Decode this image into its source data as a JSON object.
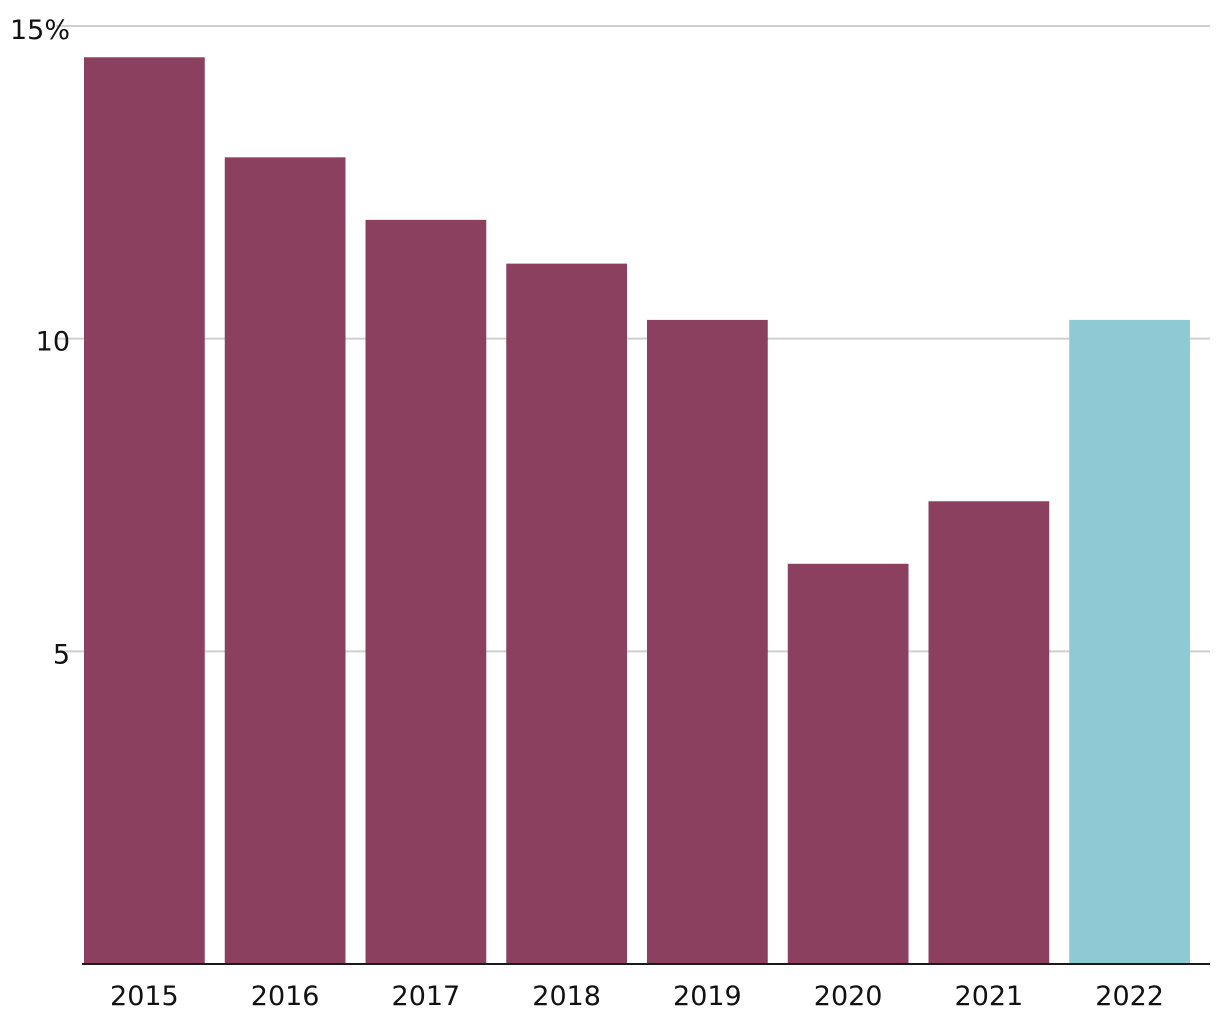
{
  "chart_data": {
    "type": "bar",
    "categories": [
      "2015",
      "2016",
      "2017",
      "2018",
      "2019",
      "2020",
      "2021",
      "2022"
    ],
    "values": [
      14.5,
      12.9,
      11.9,
      11.2,
      10.3,
      6.4,
      7.4,
      10.3
    ],
    "title": "",
    "xlabel": "",
    "ylabel": "",
    "ylim": [
      0,
      15
    ],
    "yticks": [
      {
        "value": 15,
        "label": "15%"
      },
      {
        "value": 10,
        "label": "10"
      },
      {
        "value": 5,
        "label": "5"
      }
    ],
    "grid": true,
    "colors": {
      "default_bar": "#8b4060",
      "highlight_bar": "#8fc9d4",
      "gridline": "#cfcfcf",
      "baseline": "#1a1a1a"
    },
    "highlight_categories": [
      "2022"
    ]
  }
}
